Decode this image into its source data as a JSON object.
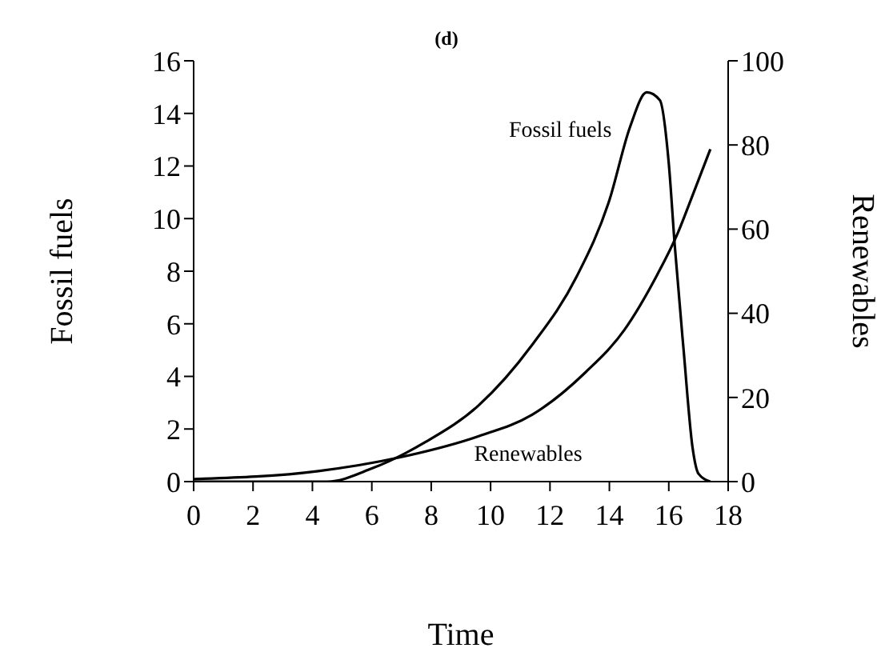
{
  "chart_data": {
    "type": "line",
    "title": "(d)",
    "xlabel": "Time",
    "ylabel": "Fossil fuels",
    "y2label": "Renewables",
    "xlim": [
      0,
      18
    ],
    "xticks": [
      0,
      2,
      4,
      6,
      8,
      10,
      12,
      14,
      16,
      18
    ],
    "ylim": [
      0,
      16
    ],
    "yticks": [
      0,
      2,
      4,
      6,
      8,
      10,
      12,
      14,
      16
    ],
    "y2lim": [
      0,
      100
    ],
    "y2ticks": [
      0,
      20,
      40,
      60,
      80,
      100
    ],
    "grid": false,
    "legend": false,
    "marker": "none",
    "line_style": "solid",
    "series": [
      {
        "name": "Fossil fuels",
        "color": "#000000",
        "x": [
          0,
          2,
          4.5,
          6.0,
          7.8,
          9.6,
          11.4,
          12.9,
          14.0,
          14.7,
          15.26,
          15.7,
          16.0,
          16.2,
          16.5,
          16.8,
          17.0,
          17.4
        ],
        "values": [
          0,
          0,
          0,
          0.5,
          1.5,
          2.9,
          5.2,
          7.8,
          10.7,
          13.5,
          14.8,
          14.5,
          12.1,
          9.0,
          5.0,
          1.3,
          0.3,
          0
        ]
      },
      {
        "name": "Renewables",
        "color": "#000000",
        "axis": "y2",
        "x": [
          0,
          4.2,
          6.9,
          9.6,
          11.4,
          13.2,
          14.5,
          15.6,
          16.3,
          16.8,
          17.4
        ],
        "values": [
          0.6,
          2.5,
          5.7,
          10.8,
          15.9,
          26,
          36,
          49,
          59,
          68,
          79
        ]
      }
    ]
  }
}
